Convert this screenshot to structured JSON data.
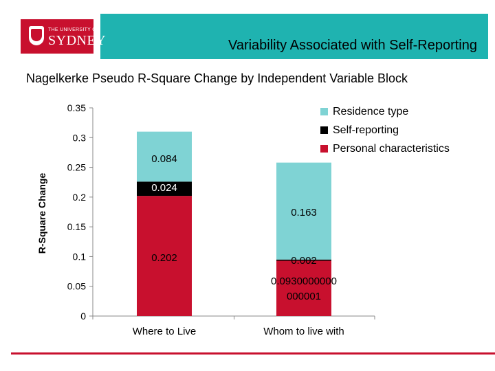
{
  "header": {
    "logo": {
      "small_text": "THE UNIVERSITY OF",
      "big_text": "SYDNEY"
    },
    "title": "Variability Associated with Self-Reporting",
    "bar_color": "#1fb3b0"
  },
  "subtitle": "Nagelkerke Pseudo R-Square Change by Independent Variable Block",
  "chart_data": {
    "type": "bar",
    "stacked": true,
    "title": "Nagelkerke Pseudo R-Square Change by Independent Variable Block",
    "xlabel": "",
    "ylabel": "R-Square Change",
    "categories": [
      "Where to Live",
      "Whom to live with"
    ],
    "ylim": [
      0,
      0.35
    ],
    "yticks": [
      "0",
      "0.05",
      "0.1",
      "0.15",
      "0.2",
      "0.25",
      "0.3",
      "0.35"
    ],
    "grid": false,
    "legend_position": "top-right",
    "series": [
      {
        "name": "Personal characteristics",
        "color": "#c8102e",
        "values": [
          0.202,
          0.093
        ],
        "labels": [
          "0.202",
          "0.0930000000 000001"
        ]
      },
      {
        "name": "Self-reporting",
        "color": "#000000",
        "values": [
          0.024,
          0.002
        ],
        "labels": [
          "0.024",
          "0.002"
        ]
      },
      {
        "name": "Residence type",
        "color": "#7fd3d4",
        "values": [
          0.084,
          0.163
        ],
        "labels": [
          "0.084",
          "0.163"
        ]
      }
    ],
    "legend_order": [
      "Residence type",
      "Self-reporting",
      "Personal characteristics"
    ]
  }
}
